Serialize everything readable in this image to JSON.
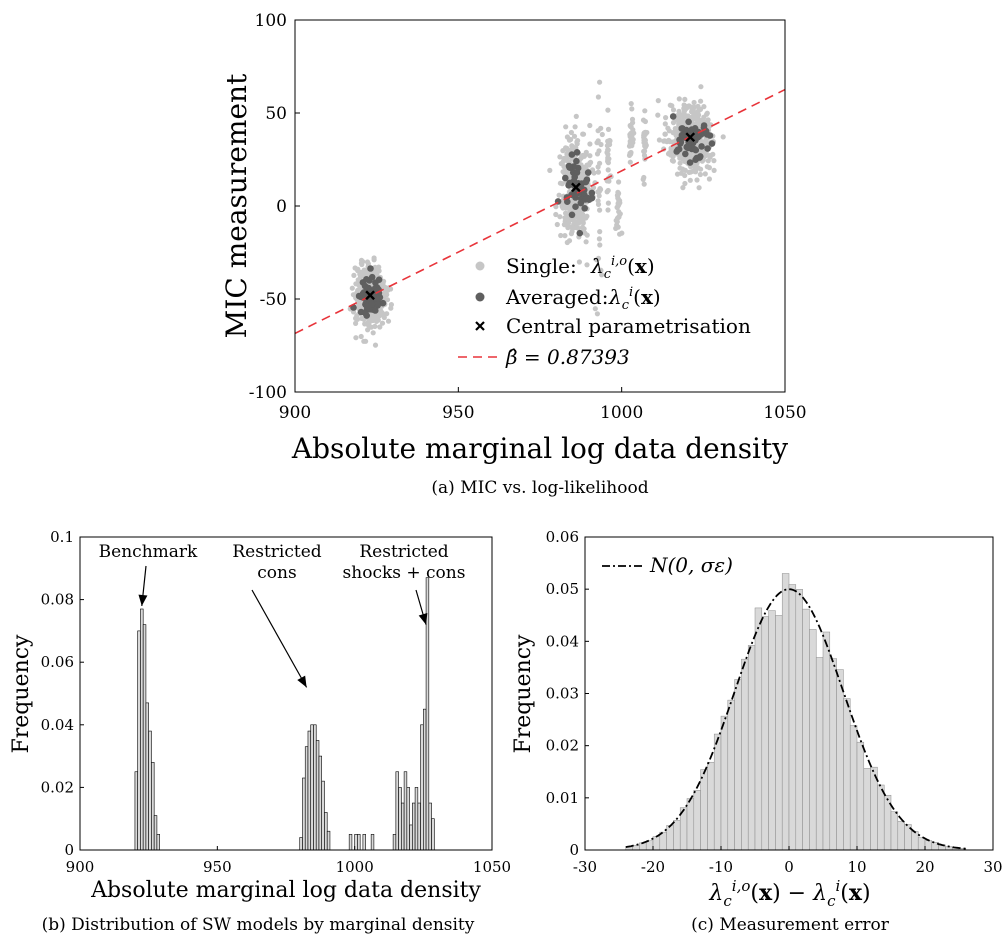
{
  "chart_data": [
    {
      "id": "a",
      "type": "scatter",
      "caption": "(a) MIC vs. log-likelihood",
      "xlabel": "Absolute marginal log data density",
      "ylabel": "MIC measurement",
      "xlim": [
        900,
        1050
      ],
      "ylim": [
        -100,
        100
      ],
      "xticks": [
        "900",
        "950",
        "1000",
        "1050"
      ],
      "yticks": [
        "-100",
        "-50",
        "0",
        "50",
        "100"
      ],
      "clusters": [
        {
          "x": 923,
          "y": -48,
          "sx": 2.3,
          "sy": 8
        },
        {
          "x": 986,
          "y": 10,
          "sx": 2.3,
          "sy": 13
        },
        {
          "x": 1021,
          "y": 36,
          "sx": 3.5,
          "sy": 9
        }
      ],
      "fit": {
        "slope": 0.87393,
        "x0": 900,
        "y0": -68.5
      },
      "central_points": [
        {
          "x": 923,
          "y": -48
        },
        {
          "x": 986,
          "y": 10
        },
        {
          "x": 1021,
          "y": 37
        }
      ],
      "series": [
        {
          "name": "Single:",
          "math": "λc^{i,o}(x)",
          "color": "#c6c6c6"
        },
        {
          "name": "Averaged:",
          "math": "λc^i(x)",
          "color": "#5f5f5f"
        },
        {
          "name": "Central parametrisation",
          "color": "#000000"
        },
        {
          "name": "",
          "math": "β̂ = 0.87393",
          "color": "#e8343a"
        }
      ],
      "legend_position": "lower-right"
    },
    {
      "id": "b",
      "type": "bar",
      "caption": "(b) Distribution of SW models by marginal density",
      "xlabel": "Absolute marginal log data density",
      "ylabel": "Frequency",
      "xlim": [
        900,
        1050
      ],
      "ylim": [
        0,
        0.1
      ],
      "xticks": [
        "900",
        "950",
        "1000",
        "1050"
      ],
      "yticks": [
        "0",
        "0.02",
        "0.04",
        "0.06",
        "0.08",
        "0.1"
      ],
      "bin_width": 1,
      "bars": [
        {
          "x": 920,
          "y": 0.025
        },
        {
          "x": 921,
          "y": 0.07
        },
        {
          "x": 922,
          "y": 0.077
        },
        {
          "x": 923,
          "y": 0.072
        },
        {
          "x": 924,
          "y": 0.047
        },
        {
          "x": 925,
          "y": 0.038
        },
        {
          "x": 926,
          "y": 0.028
        },
        {
          "x": 927,
          "y": 0.011
        },
        {
          "x": 928,
          "y": 0.005
        },
        {
          "x": 980,
          "y": 0.004
        },
        {
          "x": 981,
          "y": 0.023
        },
        {
          "x": 982,
          "y": 0.033
        },
        {
          "x": 983,
          "y": 0.038
        },
        {
          "x": 984,
          "y": 0.04
        },
        {
          "x": 985,
          "y": 0.04
        },
        {
          "x": 986,
          "y": 0.035
        },
        {
          "x": 987,
          "y": 0.03
        },
        {
          "x": 988,
          "y": 0.022
        },
        {
          "x": 989,
          "y": 0.012
        },
        {
          "x": 990,
          "y": 0.006
        },
        {
          "x": 998,
          "y": 0.005
        },
        {
          "x": 1000,
          "y": 0.005
        },
        {
          "x": 1001,
          "y": 0.005
        },
        {
          "x": 1003,
          "y": 0.005
        },
        {
          "x": 1006,
          "y": 0.005
        },
        {
          "x": 1014,
          "y": 0.005
        },
        {
          "x": 1015,
          "y": 0.025
        },
        {
          "x": 1016,
          "y": 0.02
        },
        {
          "x": 1017,
          "y": 0.015
        },
        {
          "x": 1018,
          "y": 0.025
        },
        {
          "x": 1019,
          "y": 0.02
        },
        {
          "x": 1020,
          "y": 0.008
        },
        {
          "x": 1021,
          "y": 0.015
        },
        {
          "x": 1022,
          "y": 0.02
        },
        {
          "x": 1023,
          "y": 0.015
        },
        {
          "x": 1024,
          "y": 0.04
        },
        {
          "x": 1025,
          "y": 0.045
        },
        {
          "x": 1026,
          "y": 0.087
        },
        {
          "x": 1027,
          "y": 0.015
        },
        {
          "x": 1028,
          "y": 0.01
        }
      ],
      "annotations": [
        {
          "lines": [
            "Benchmark"
          ],
          "arrow_to": [
            922,
            0.077
          ]
        },
        {
          "lines": [
            "Restricted",
            "cons"
          ],
          "arrow_to": [
            982,
            0.051
          ]
        },
        {
          "lines": [
            "Restricted",
            "shocks + cons"
          ],
          "arrow_to": [
            1025.5,
            0.071
          ]
        }
      ]
    },
    {
      "id": "c",
      "type": "bar",
      "caption": "(c) Measurement error",
      "xlabel": "λc^{i,o}(x) − λc^i(x)",
      "ylabel": "Frequency",
      "xlim": [
        -30,
        30
      ],
      "ylim": [
        0,
        0.06
      ],
      "xticks": [
        "-30",
        "-20",
        "-10",
        "0",
        "10",
        "20",
        "30"
      ],
      "yticks": [
        "0",
        "0.01",
        "0.02",
        "0.03",
        "0.04",
        "0.05",
        "0.06"
      ],
      "bin_width": 1,
      "normal_fit": {
        "mean": 0,
        "sd": 8,
        "peak": 0.05
      },
      "fit_label": "N(0, σε)",
      "bin_range": [
        -24,
        26
      ]
    }
  ]
}
